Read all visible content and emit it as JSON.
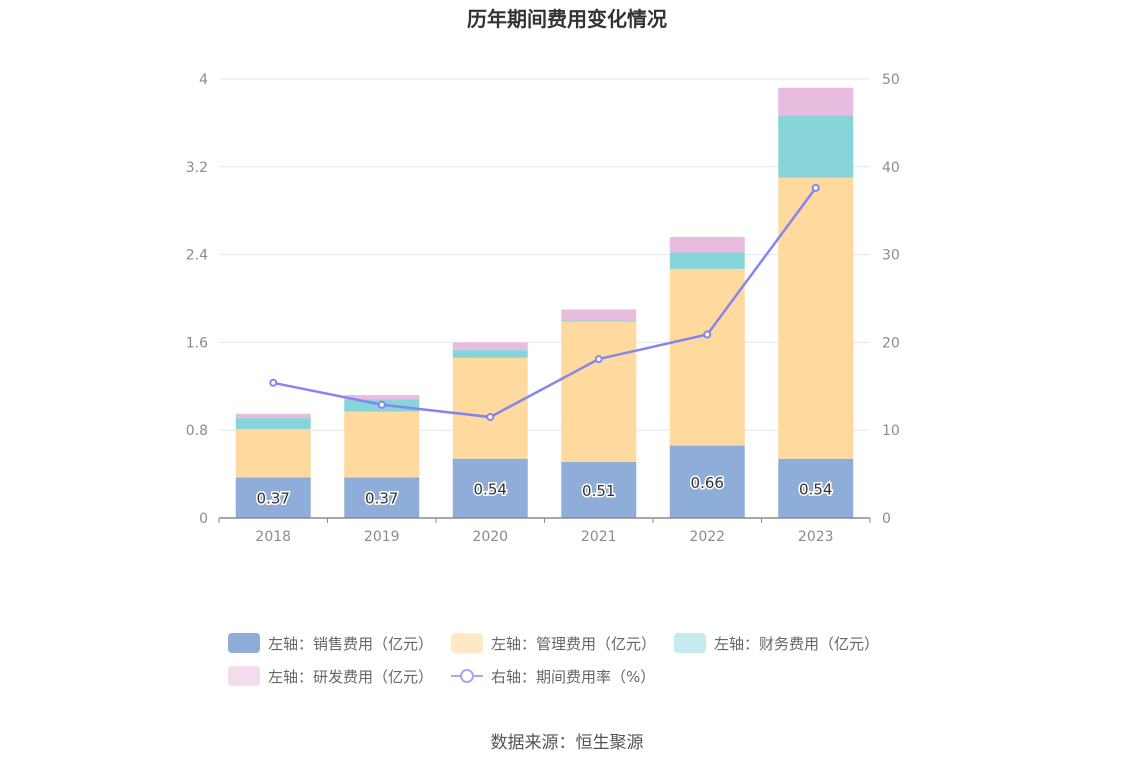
{
  "chart_data": {
    "type": "bar",
    "title": "历年期间费用变化情况",
    "categories": [
      "2018",
      "2019",
      "2020",
      "2021",
      "2022",
      "2023"
    ],
    "stacked": true,
    "y_left": {
      "ticks": [
        "0",
        "0.8",
        "1.6",
        "2.4",
        "3.2",
        "4"
      ],
      "ylim": [
        0,
        4
      ]
    },
    "y_right": {
      "ticks": [
        "0",
        "10",
        "20",
        "30",
        "40",
        "50"
      ],
      "ylim": [
        0,
        50
      ]
    },
    "grid": true,
    "legend_position": "bottom",
    "series": [
      {
        "name": "左轴：销售费用（亿元）",
        "axis": "left",
        "type": "bar",
        "color": "#8fadd9",
        "values": [
          0.37,
          0.37,
          0.54,
          0.51,
          0.66,
          0.54
        ],
        "labels": [
          "0.37",
          "0.37",
          "0.54",
          "0.51",
          "0.66",
          "0.54"
        ]
      },
      {
        "name": "左轴：管理费用（亿元）",
        "axis": "left",
        "type": "bar",
        "color": "#ffd99e",
        "values": [
          0.44,
          0.6,
          0.92,
          1.28,
          1.61,
          2.56
        ]
      },
      {
        "name": "左轴：财务费用（亿元）",
        "axis": "left",
        "type": "bar",
        "color": "#87d5d9",
        "values": [
          0.1,
          0.11,
          0.07,
          0.01,
          0.15,
          0.57
        ]
      },
      {
        "name": "左轴：研发费用（亿元）",
        "axis": "left",
        "type": "bar",
        "color": "#e8bcdf",
        "values": [
          0.04,
          0.04,
          0.07,
          0.1,
          0.14,
          0.25
        ]
      },
      {
        "name": "右轴：期间费用率（%）",
        "axis": "right",
        "type": "line",
        "color": "#8585ee",
        "values": [
          15.4,
          12.9,
          11.5,
          18.1,
          20.9,
          37.6
        ]
      }
    ]
  },
  "source": "数据来源：恒生聚源"
}
